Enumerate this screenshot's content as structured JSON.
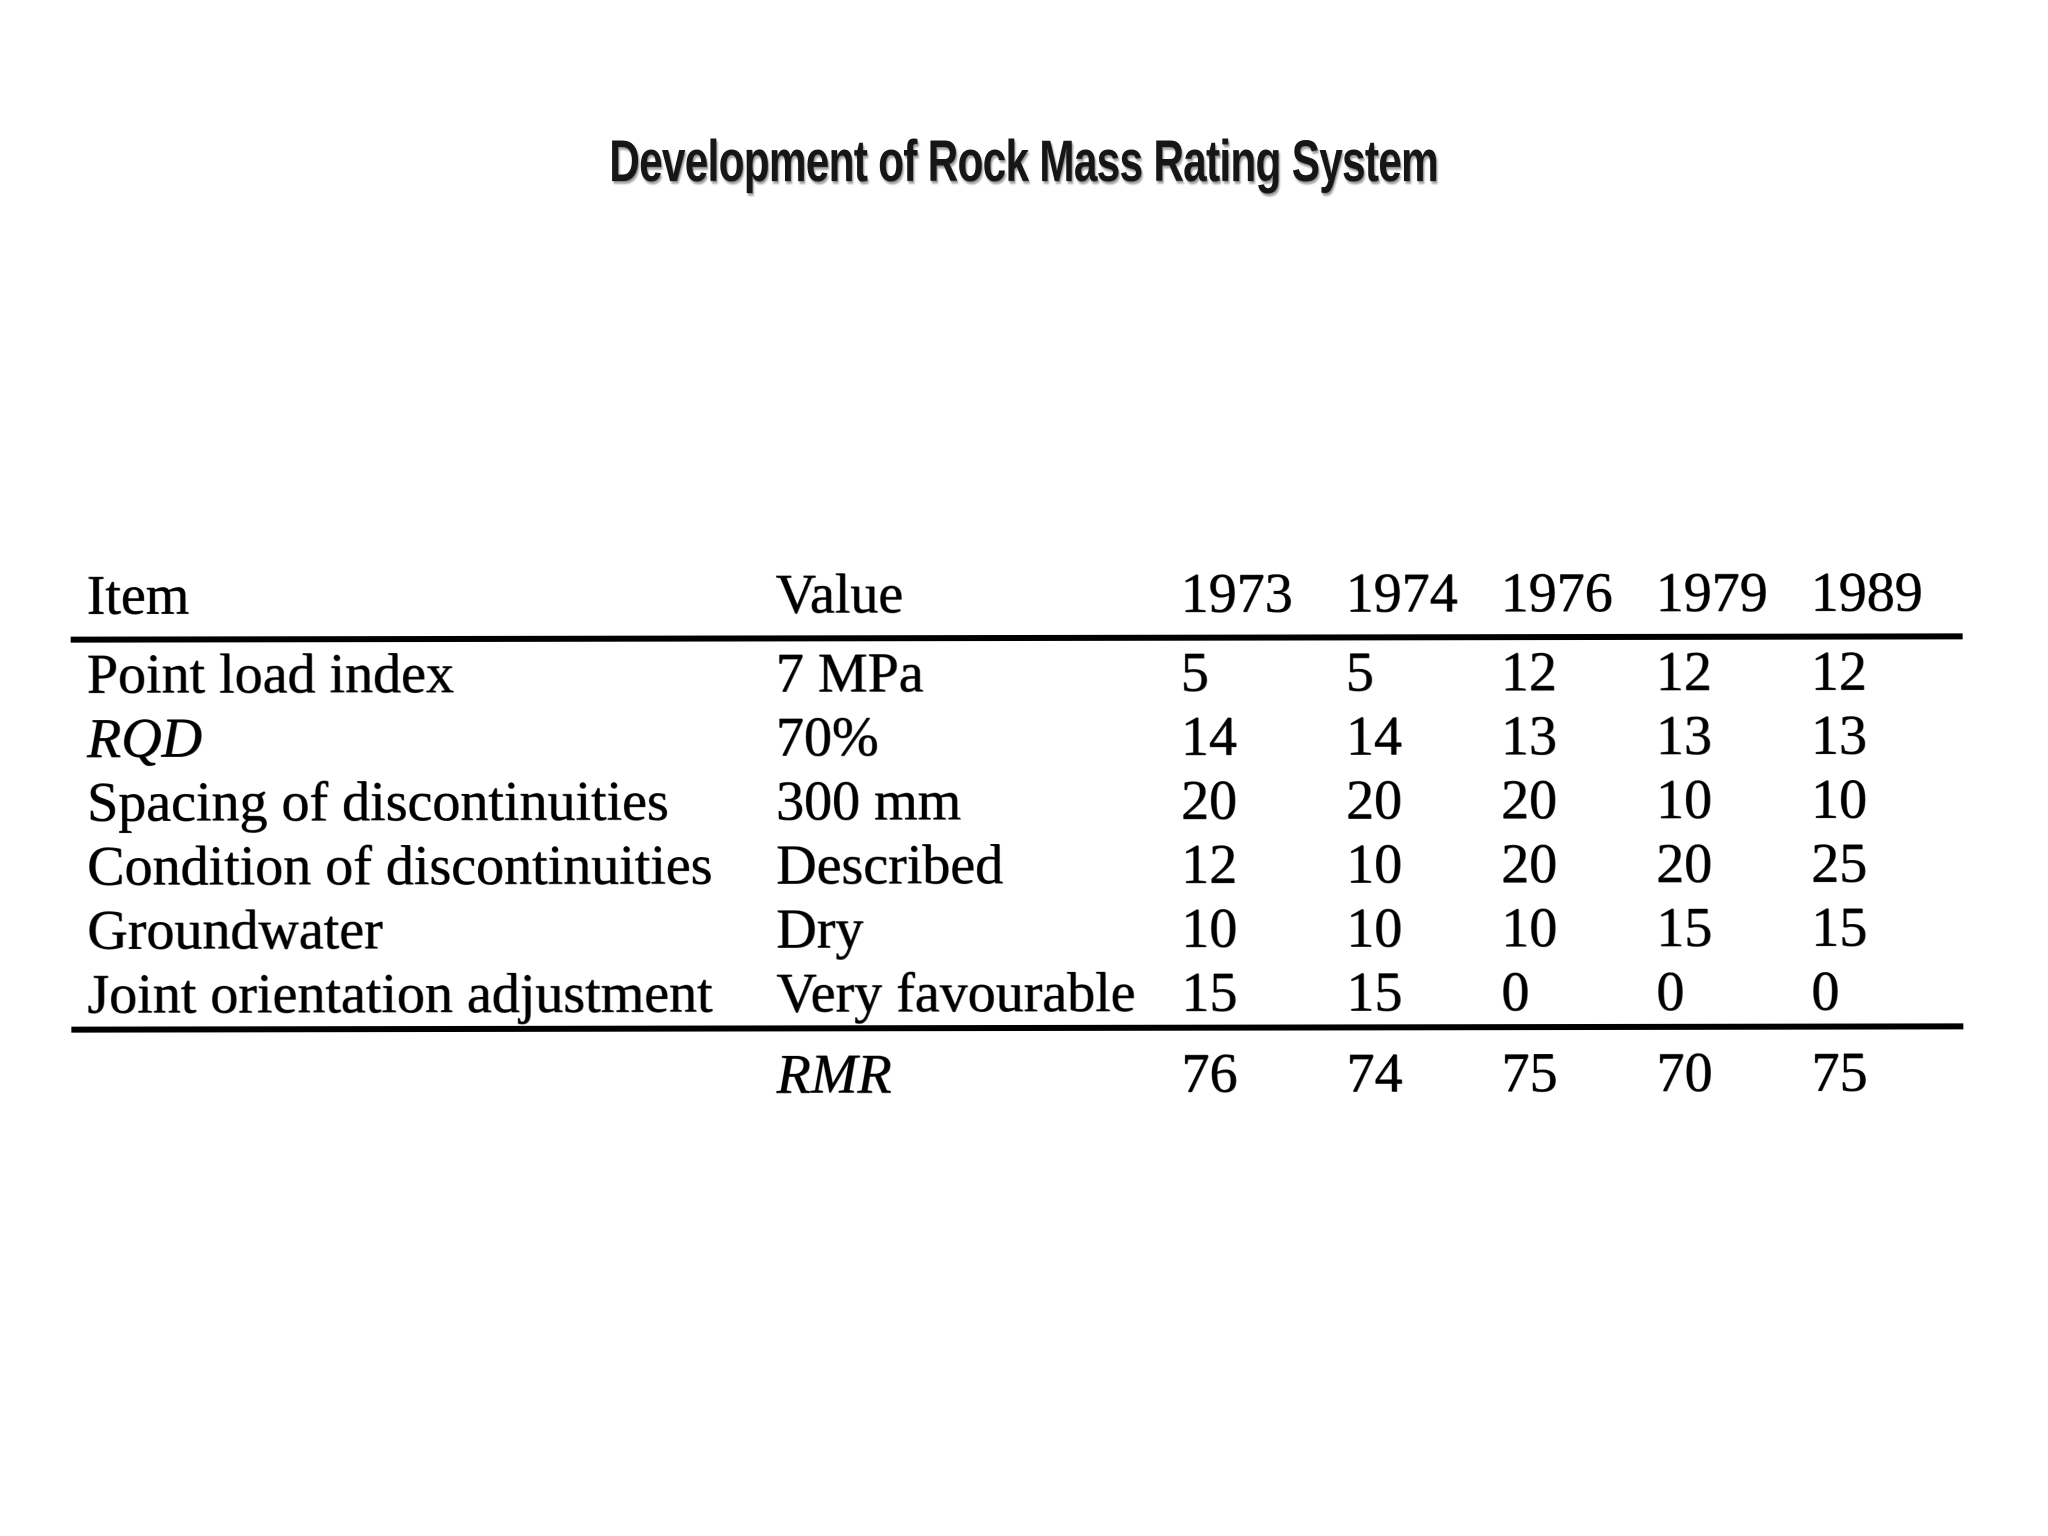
{
  "title": "Development of Rock Mass Rating System",
  "table": {
    "columns": [
      "Item",
      "Value",
      "1973",
      "1974",
      "1976",
      "1979",
      "1989"
    ],
    "rows": [
      {
        "item": "Point load index",
        "item_italic": false,
        "value": "7 MPa",
        "ratings": [
          "5",
          "5",
          "12",
          "12",
          "12"
        ]
      },
      {
        "item": "RQD",
        "item_italic": true,
        "value": "70%",
        "ratings": [
          "14",
          "14",
          "13",
          "13",
          "13"
        ]
      },
      {
        "item": "Spacing of discontinuities",
        "item_italic": false,
        "value": "300 mm",
        "ratings": [
          "20",
          "20",
          "20",
          "10",
          "10"
        ]
      },
      {
        "item": "Condition of discontinuities",
        "item_italic": false,
        "value": "Described",
        "ratings": [
          "12",
          "10",
          "20",
          "20",
          "25"
        ]
      },
      {
        "item": "Groundwater",
        "item_italic": false,
        "value": "Dry",
        "ratings": [
          "10",
          "10",
          "10",
          "15",
          "15"
        ]
      },
      {
        "item": "Joint orientation adjustment",
        "item_italic": false,
        "value": "Very favourable",
        "ratings": [
          "15",
          "15",
          "0",
          "0",
          "0"
        ]
      }
    ],
    "summary": {
      "item": "",
      "label": "RMR",
      "label_italic": true,
      "ratings": [
        "76",
        "74",
        "75",
        "70",
        "75"
      ]
    }
  },
  "colors": {
    "background": "#ffffff",
    "text": "#0b0b0b",
    "rule": "#141414"
  }
}
